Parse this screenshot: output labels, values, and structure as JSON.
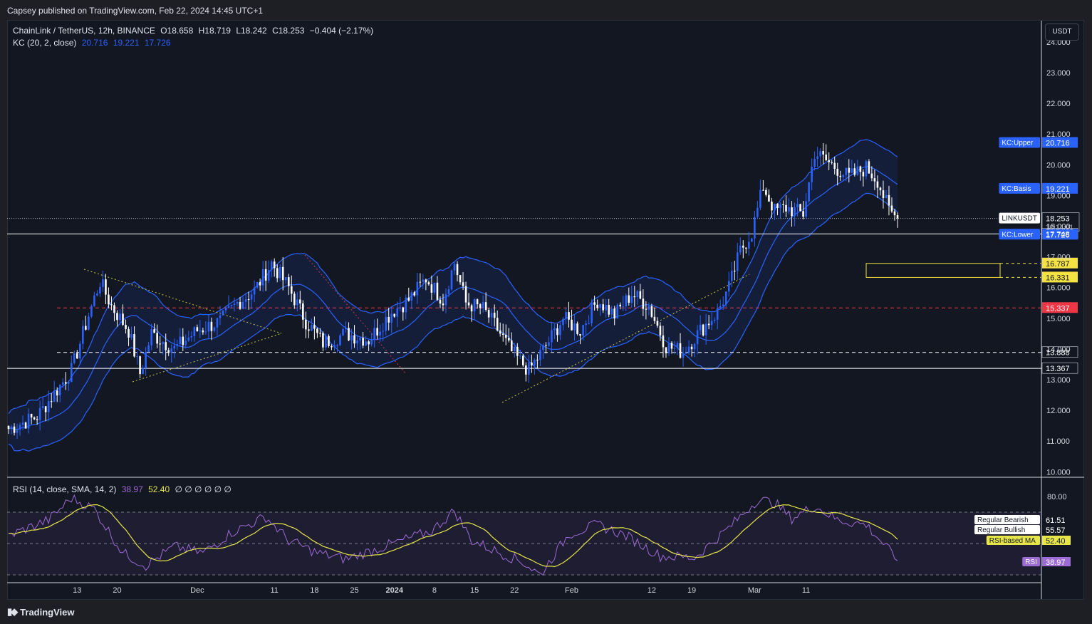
{
  "header": {
    "published": "Capsey published on TradingView.com, Feb 22, 2024 14:45 UTC+1"
  },
  "footer": {
    "brand": "TradingView"
  },
  "currency_button": "USDT",
  "legend": {
    "symbol": "ChainLink / TetherUS, 12h, BINANCE",
    "open": "O18.658",
    "high": "H18.719",
    "low": "L18.242",
    "close": "C18.253",
    "change": "−0.404 (−2.17%)",
    "kc_label": "KC (20, 2, close)",
    "kc_upper": "20.716",
    "kc_basis": "19.221",
    "kc_lower": "17.726",
    "rsi_label": "RSI (14, close, SMA, 14, 2)",
    "rsi_value": "38.97",
    "rsi_ma": "52.40",
    "rsi_na": "∅ ∅ ∅ ∅ ∅ ∅"
  },
  "colors": {
    "background": "#131722",
    "up_candle": "#2962ff",
    "down_candle": "#ffffff",
    "kc_band": "#2962ff",
    "rsi_line": "#9c6bd4",
    "rsi_ma_line": "#e6e64a",
    "support_red": "#f23645",
    "highlight_yellow": "#f5e342"
  },
  "price_axis": {
    "ticks": [
      "24.000",
      "23.000",
      "22.000",
      "21.000",
      "20.000",
      "19.000",
      "18.000",
      "17.000",
      "16.000",
      "15.000",
      "14.000",
      "13.000",
      "12.000",
      "11.000",
      "10.000"
    ]
  },
  "rsi_axis": {
    "ticks": [
      "80.00"
    ]
  },
  "time_axis": {
    "labels": [
      "13",
      "20",
      "Dec",
      "11",
      "18",
      "25",
      "2024",
      "8",
      "15",
      "22",
      "Feb",
      "12",
      "19",
      "Mar",
      "11"
    ]
  },
  "price_labels": [
    {
      "text": "KC:Upper",
      "value": "20.716",
      "color": "#2962ff"
    },
    {
      "text": "KC:Basis",
      "value": "19.221",
      "color": "#2962ff"
    },
    {
      "text": "LINKUSDT",
      "value": "18.253",
      "sub": "10:14:01",
      "color": "#ffffff"
    },
    {
      "text": "",
      "value": "17.748",
      "color": "#131722"
    },
    {
      "text": "KC:Lower",
      "value": "17.726",
      "color": "#2962ff"
    },
    {
      "text": "",
      "value": "16.787",
      "color": "#f5e342"
    },
    {
      "text": "",
      "value": "16.331",
      "color": "#f5e342"
    },
    {
      "text": "",
      "value": "15.337",
      "color": "#f23645"
    },
    {
      "text": "",
      "value": "13.888",
      "color": "#131722"
    },
    {
      "text": "",
      "value": "13.367",
      "color": "#131722"
    }
  ],
  "rsi_labels": [
    {
      "text": "Regular Bearish",
      "value": "61.51"
    },
    {
      "text": "Regular Bullish",
      "value": "55.57"
    },
    {
      "text": "RSI-based MA",
      "value": "52.40"
    },
    {
      "text": "RSI",
      "value": "38.97"
    }
  ],
  "chart_data": {
    "type": "candlestick",
    "symbol": "LINKUSDT",
    "interval": "12h",
    "ylim": [
      10,
      24
    ],
    "horizontal_levels": [
      17.748,
      16.787,
      16.331,
      15.337,
      13.888,
      13.367
    ],
    "waypoints": [
      {
        "i": 0,
        "c": 11.4
      },
      {
        "i": 10,
        "c": 11.8
      },
      {
        "i": 22,
        "c": 13.3
      },
      {
        "i": 28,
        "c": 15.1
      },
      {
        "i": 32,
        "c": 16.2
      },
      {
        "i": 36,
        "c": 15.4
      },
      {
        "i": 42,
        "c": 14.6
      },
      {
        "i": 46,
        "c": 13.2
      },
      {
        "i": 50,
        "c": 14.5
      },
      {
        "i": 58,
        "c": 14.0
      },
      {
        "i": 66,
        "c": 14.6
      },
      {
        "i": 74,
        "c": 14.9
      },
      {
        "i": 80,
        "c": 15.5
      },
      {
        "i": 86,
        "c": 15.9
      },
      {
        "i": 92,
        "c": 16.8
      },
      {
        "i": 98,
        "c": 16.0
      },
      {
        "i": 104,
        "c": 14.9
      },
      {
        "i": 110,
        "c": 14.2
      },
      {
        "i": 118,
        "c": 14.5
      },
      {
        "i": 126,
        "c": 14.3
      },
      {
        "i": 134,
        "c": 15.2
      },
      {
        "i": 140,
        "c": 15.6
      },
      {
        "i": 146,
        "c": 16.3
      },
      {
        "i": 152,
        "c": 15.6
      },
      {
        "i": 156,
        "c": 16.8
      },
      {
        "i": 160,
        "c": 15.5
      },
      {
        "i": 166,
        "c": 15.3
      },
      {
        "i": 170,
        "c": 14.8
      },
      {
        "i": 176,
        "c": 13.9
      },
      {
        "i": 182,
        "c": 13.3
      },
      {
        "i": 188,
        "c": 14.1
      },
      {
        "i": 194,
        "c": 15.0
      },
      {
        "i": 200,
        "c": 14.6
      },
      {
        "i": 206,
        "c": 15.6
      },
      {
        "i": 212,
        "c": 15.1
      },
      {
        "i": 218,
        "c": 15.8
      },
      {
        "i": 224,
        "c": 15.4
      },
      {
        "i": 230,
        "c": 14.1
      },
      {
        "i": 236,
        "c": 13.9
      },
      {
        "i": 242,
        "c": 14.6
      },
      {
        "i": 248,
        "c": 15.2
      },
      {
        "i": 252,
        "c": 16.0
      },
      {
        "i": 256,
        "c": 17.2
      },
      {
        "i": 260,
        "c": 17.8
      },
      {
        "i": 264,
        "c": 19.3
      },
      {
        "i": 268,
        "c": 18.5
      },
      {
        "i": 272,
        "c": 18.6
      },
      {
        "i": 278,
        "c": 18.4
      },
      {
        "i": 282,
        "c": 20.4
      },
      {
        "i": 288,
        "c": 20.0
      },
      {
        "i": 294,
        "c": 19.6
      },
      {
        "i": 300,
        "c": 19.9
      },
      {
        "i": 304,
        "c": 19.5
      },
      {
        "i": 308,
        "c": 18.5
      },
      {
        "i": 311,
        "c": 18.253
      }
    ],
    "rsi": {
      "ylim": [
        20,
        90
      ],
      "levels": [
        70,
        50,
        30
      ],
      "waypoints": [
        {
          "i": 0,
          "v": 55
        },
        {
          "i": 14,
          "v": 65
        },
        {
          "i": 22,
          "v": 79
        },
        {
          "i": 30,
          "v": 72
        },
        {
          "i": 40,
          "v": 44
        },
        {
          "i": 48,
          "v": 36
        },
        {
          "i": 58,
          "v": 48
        },
        {
          "i": 68,
          "v": 44
        },
        {
          "i": 78,
          "v": 57
        },
        {
          "i": 90,
          "v": 67
        },
        {
          "i": 98,
          "v": 52
        },
        {
          "i": 108,
          "v": 44
        },
        {
          "i": 118,
          "v": 40
        },
        {
          "i": 128,
          "v": 46
        },
        {
          "i": 138,
          "v": 52
        },
        {
          "i": 148,
          "v": 58
        },
        {
          "i": 156,
          "v": 71
        },
        {
          "i": 162,
          "v": 52
        },
        {
          "i": 172,
          "v": 44
        },
        {
          "i": 180,
          "v": 38
        },
        {
          "i": 186,
          "v": 30
        },
        {
          "i": 196,
          "v": 56
        },
        {
          "i": 206,
          "v": 62
        },
        {
          "i": 216,
          "v": 55
        },
        {
          "i": 228,
          "v": 42
        },
        {
          "i": 240,
          "v": 41
        },
        {
          "i": 252,
          "v": 60
        },
        {
          "i": 262,
          "v": 78
        },
        {
          "i": 268,
          "v": 76
        },
        {
          "i": 274,
          "v": 66
        },
        {
          "i": 282,
          "v": 74
        },
        {
          "i": 290,
          "v": 65
        },
        {
          "i": 300,
          "v": 62
        },
        {
          "i": 306,
          "v": 50
        },
        {
          "i": 311,
          "v": 38.97
        }
      ]
    },
    "time_labels_index": [
      {
        "label": "13",
        "i": 24
      },
      {
        "label": "20",
        "i": 38
      },
      {
        "label": "Dec",
        "i": 66
      },
      {
        "label": "11",
        "i": 93
      },
      {
        "label": "18",
        "i": 107
      },
      {
        "label": "25",
        "i": 121
      },
      {
        "label": "2024",
        "i": 135
      },
      {
        "label": "8",
        "i": 149
      },
      {
        "label": "15",
        "i": 163
      },
      {
        "label": "22",
        "i": 177
      },
      {
        "label": "Feb",
        "i": 197
      },
      {
        "label": "12",
        "i": 225
      },
      {
        "label": "19",
        "i": 239
      },
      {
        "label": "Mar",
        "i": 261
      },
      {
        "label": "11",
        "i": 279
      }
    ]
  }
}
